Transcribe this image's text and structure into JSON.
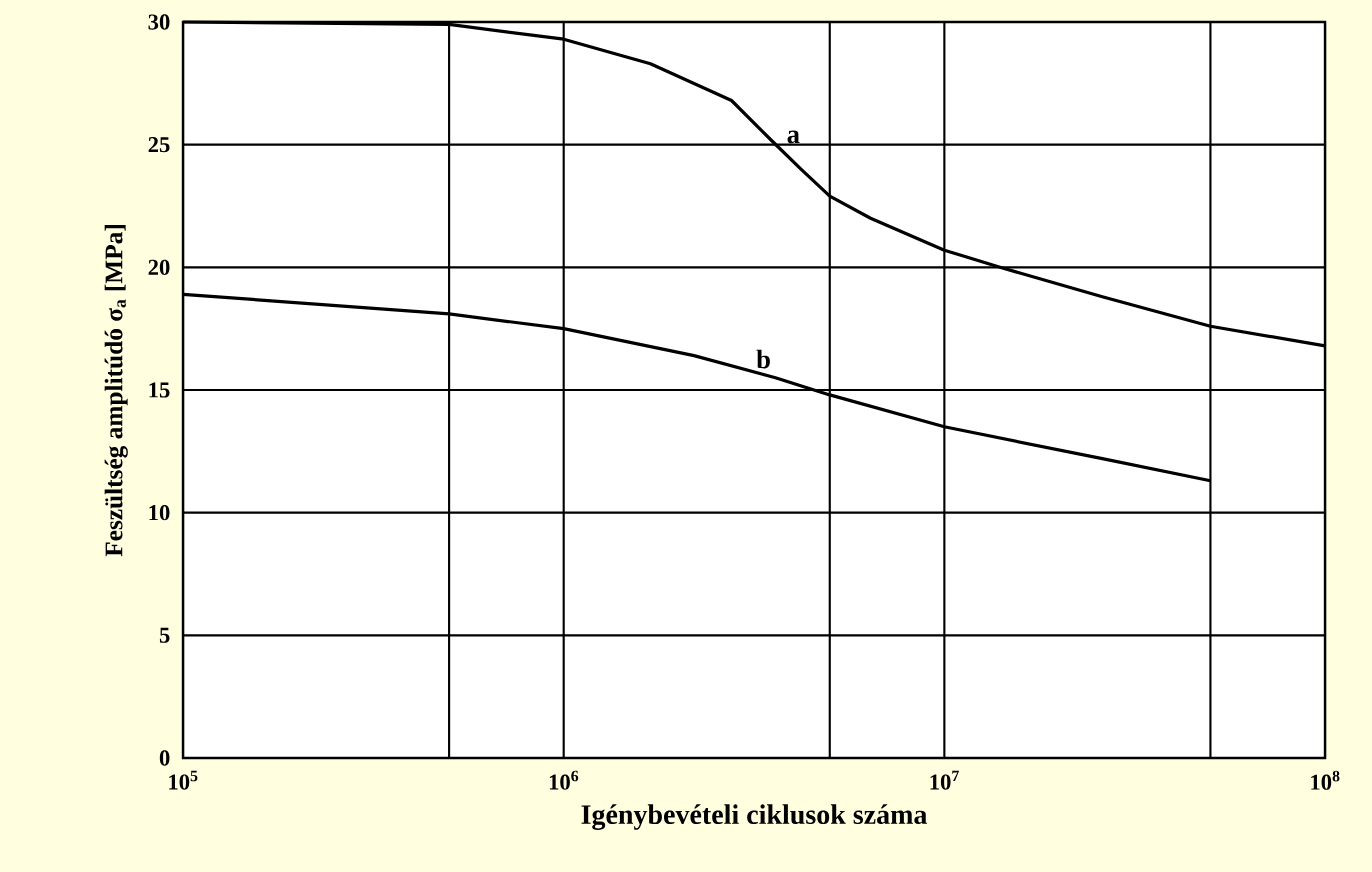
{
  "chart_data": {
    "type": "line",
    "xlabel": "Igénybevételi ciklusok száma",
    "ylabel": "Feszültség amplitúdó  σ$_{a}$  [MPa]",
    "log": "x",
    "grid": true,
    "marker": "none",
    "line_style": "solid",
    "legend": false,
    "xlim": [
      100000,
      100000000
    ],
    "ylim": [
      0,
      30
    ],
    "xticks": [
      {
        "value": 100000,
        "label": "10$^{5}$"
      },
      {
        "value": 500000,
        "label": null
      },
      {
        "value": 1000000,
        "label": "10$^{6}$"
      },
      {
        "value": 5000000,
        "label": null
      },
      {
        "value": 10000000,
        "label": "10$^{7}$"
      },
      {
        "value": 50000000,
        "label": null
      },
      {
        "value": 100000000,
        "label": "10$^{8}$"
      }
    ],
    "yticks": [
      0,
      5,
      10,
      15,
      20,
      25,
      30
    ],
    "series": [
      {
        "name": "a",
        "color": "#000000",
        "x": [
          100000,
          500000,
          1000000,
          1690000,
          2760000,
          3500000,
          4200000,
          5000000,
          6400000,
          10000000,
          14000000,
          26000000,
          50000000,
          100000000
        ],
        "values": [
          30,
          29.9,
          29.3,
          28.3,
          26.8,
          25.2,
          24,
          22.9,
          22,
          20.7,
          20,
          18.8,
          17.6,
          16.8
        ]
      },
      {
        "name": "b",
        "color": "#000000",
        "x": [
          100000,
          500000,
          1000000,
          2200000,
          3600000,
          5000000,
          10000000,
          26000000,
          50000000
        ],
        "values": [
          18.9,
          18.1,
          17.5,
          16.4,
          15.5,
          14.8,
          13.5,
          12.2,
          11.3
        ]
      }
    ]
  }
}
